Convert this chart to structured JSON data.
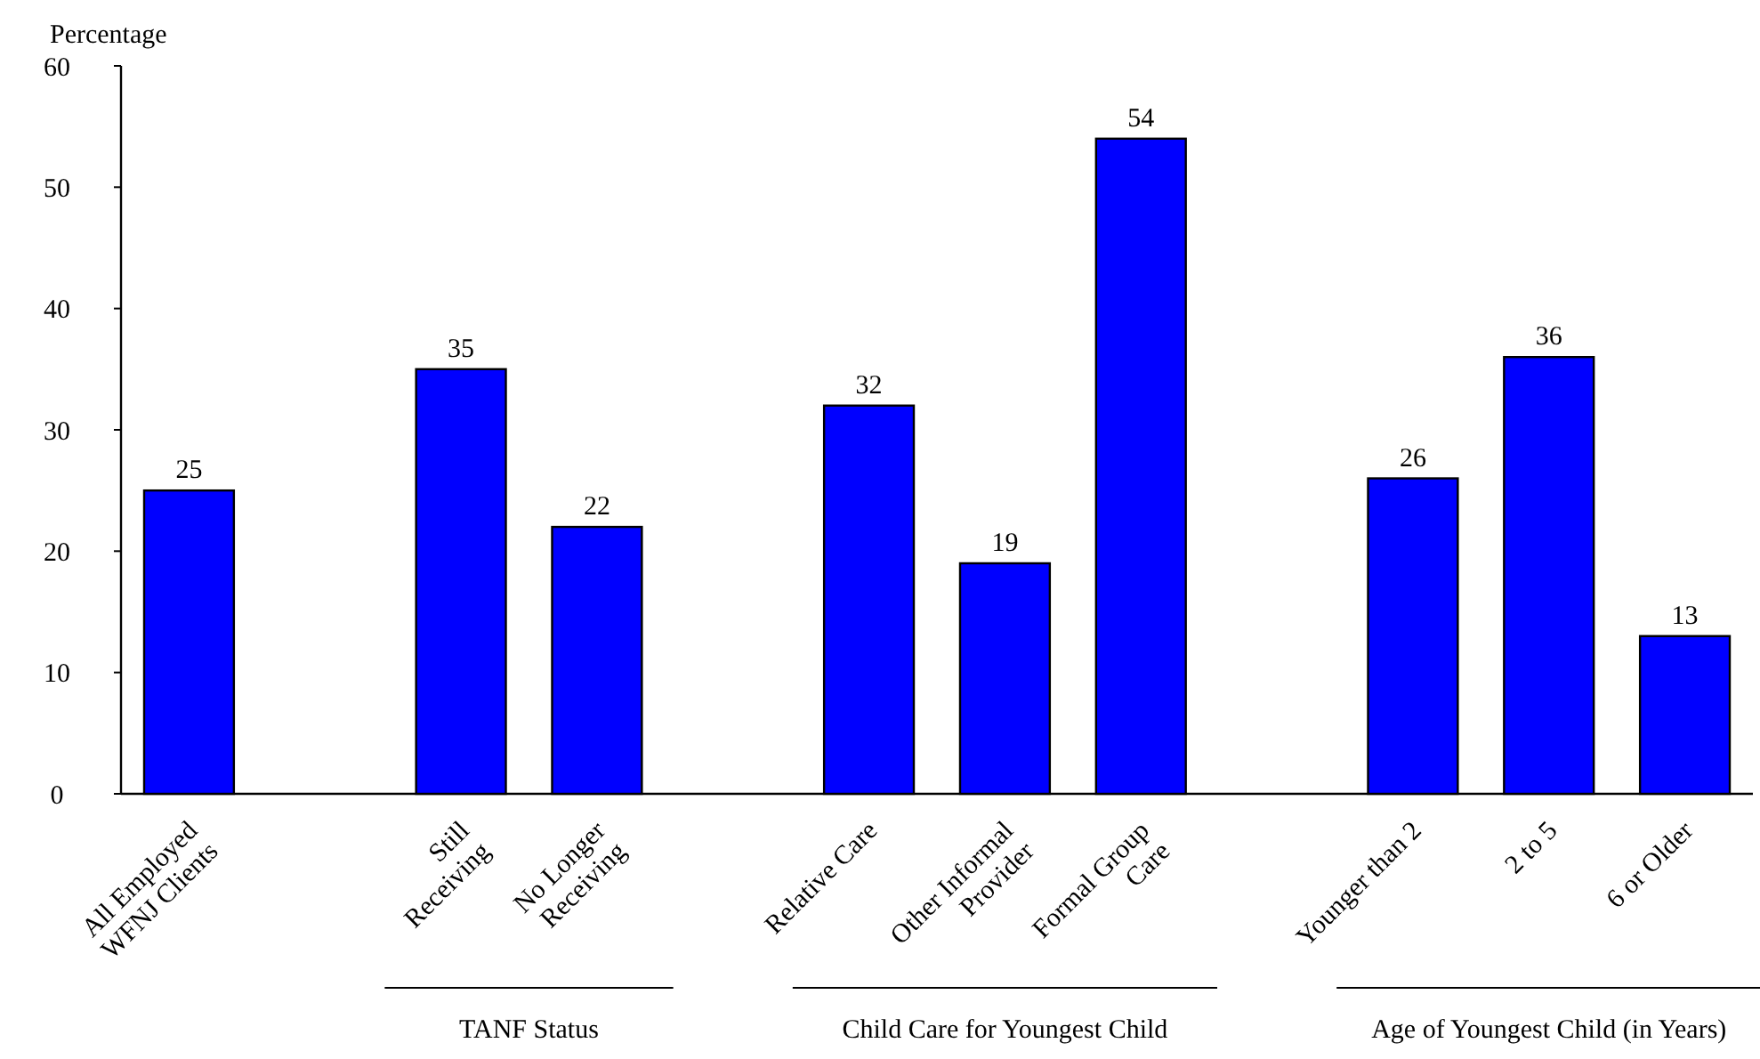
{
  "chart_data": {
    "type": "bar",
    "ylabel": "Percentage",
    "categories": [
      "All Employed WFNJ Clients",
      null,
      "Still Receiving",
      "No Longer Receiving",
      null,
      "Relative Care",
      "Other Informal Provider",
      "Formal Group Care",
      null,
      "Younger than 2",
      "2 to 5",
      "6 or Older"
    ],
    "values": [
      25,
      null,
      35,
      22,
      null,
      32,
      19,
      54,
      null,
      26,
      36,
      13
    ],
    "color": "#0000ff",
    "ylim": [
      0,
      60
    ],
    "yticks": [
      0,
      10,
      20,
      30,
      40,
      50,
      60
    ],
    "grid": false,
    "data_labels": true,
    "annotations": [
      "TANF Status",
      "Child Care for Youngest Child",
      "Age of Youngest Child (in Years)"
    ]
  }
}
